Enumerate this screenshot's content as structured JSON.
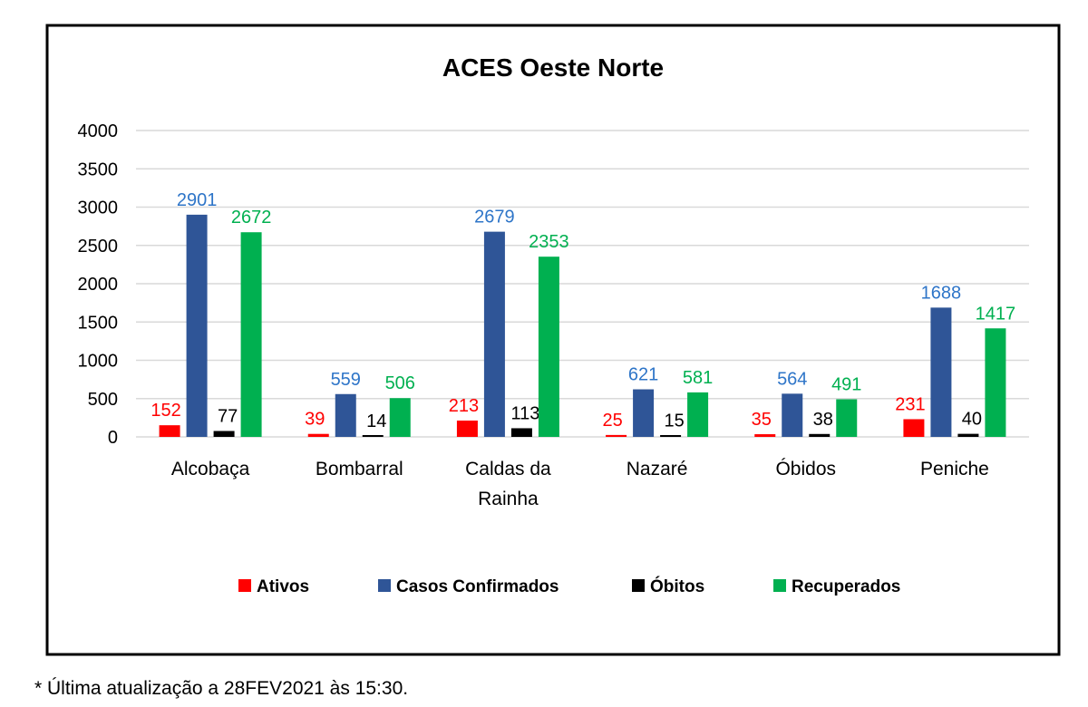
{
  "chart_data": {
    "type": "bar",
    "title": "ACES Oeste Norte",
    "xlabel": "",
    "ylabel": "",
    "ylim": [
      0,
      4000
    ],
    "yticks": [
      0,
      500,
      1000,
      1500,
      2000,
      2500,
      3000,
      3500,
      4000
    ],
    "grid": true,
    "legend_position": "bottom",
    "categories": [
      [
        "Alcobaça"
      ],
      [
        "Bombarral"
      ],
      [
        "Caldas da",
        "Rainha"
      ],
      [
        "Nazaré"
      ],
      [
        "Óbidos"
      ],
      [
        "Peniche"
      ]
    ],
    "series": [
      {
        "name": "Ativos",
        "color": "#ff0000",
        "label_color": "#ff0000",
        "values": [
          152,
          39,
          213,
          25,
          35,
          231
        ]
      },
      {
        "name": "Casos Confirmados",
        "color": "#2f5597",
        "label_color": "#2e75c8",
        "values": [
          2901,
          559,
          2679,
          621,
          564,
          1688
        ]
      },
      {
        "name": "Óbitos",
        "color": "#000000",
        "label_color": "#000000",
        "values": [
          77,
          14,
          113,
          15,
          38,
          40
        ]
      },
      {
        "name": "Recuperados",
        "color": "#00b050",
        "label_color": "#00b050",
        "values": [
          2672,
          506,
          2353,
          581,
          491,
          1417
        ]
      }
    ]
  },
  "footnote": "* Última atualização a 28FEV2021 às 15:30."
}
